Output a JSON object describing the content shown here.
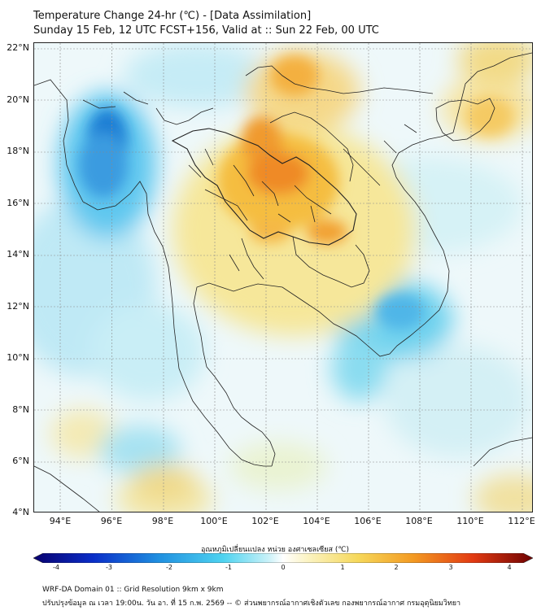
{
  "title": {
    "line1": "Temperature Change 24-hr (℃) - [Data Assimilation]",
    "line2": "Sunday 15 Feb, 12 UTC FCST+156, Valid at :: Sun 22 Feb, 00 UTC"
  },
  "map": {
    "lat_labels": [
      "22°N",
      "20°N",
      "18°N",
      "16°N",
      "14°N",
      "12°N",
      "10°N",
      "8°N",
      "6°N",
      "4°N"
    ],
    "lon_labels": [
      "94°E",
      "96°E",
      "98°E",
      "100°E",
      "102°E",
      "104°E",
      "106°E",
      "108°E",
      "110°E",
      "112°E"
    ]
  },
  "colorbar": {
    "title": "อุณหภูมิเปลี่ยนแปลง หน่วย องศาเซลเซียส (℃)",
    "ticks": [
      "-4",
      "-3",
      "-2",
      "-1",
      "0",
      "1",
      "2",
      "3",
      "4"
    ],
    "min": -4,
    "max": 4
  },
  "footer": {
    "line1": "WRF-DA Domain 01 :: Grid Resolution 9km x 9km",
    "line2": "ปรับปรุงข้อมูล ณ เวลา 19:00น. วัน อา. ที่ 15 ก.พ. 2569 -- © ส่วนพยากรณ์อากาศเชิงตัวเลข กองพยากรณ์อากาศ กรมอุตุนิยมวิทยา"
  }
}
